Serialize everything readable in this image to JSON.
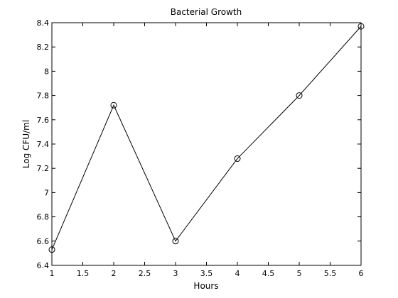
{
  "chart_data": {
    "type": "line",
    "title": "Bacterial Growth",
    "xlabel": "Hours",
    "ylabel": "Log CFU/ml",
    "xlim": [
      1,
      6
    ],
    "ylim": [
      6.4,
      8.4
    ],
    "xticks": [
      1,
      1.5,
      2,
      2.5,
      3,
      3.5,
      4,
      4.5,
      5,
      5.5,
      6
    ],
    "yticks": [
      6.4,
      6.6,
      6.8,
      7,
      7.2,
      7.4,
      7.6,
      7.8,
      8,
      8.2,
      8.4
    ],
    "grid": false,
    "series": [
      {
        "x": [
          1,
          2,
          3,
          4,
          5,
          6
        ],
        "y": [
          6.53,
          7.72,
          6.6,
          7.28,
          7.8,
          8.37
        ],
        "marker": "circle",
        "color": "#000000"
      }
    ]
  }
}
